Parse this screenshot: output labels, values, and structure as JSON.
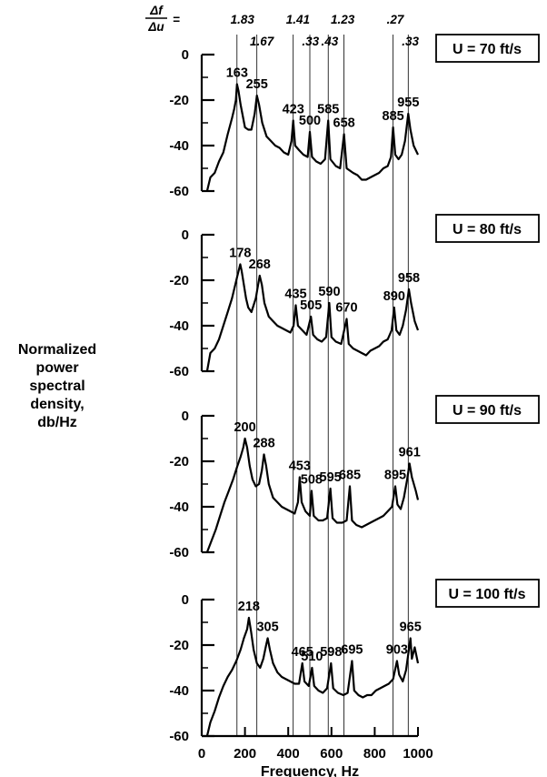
{
  "chart_data": {
    "type": "line",
    "xlabel": "Frequency, Hz",
    "ylabel_lines": [
      "Normalized",
      "power",
      "spectral",
      "density,",
      "db/Hz"
    ],
    "xlim": [
      0,
      1000
    ],
    "ylim": [
      -60,
      0
    ],
    "x_ticks": [
      0,
      200,
      400,
      600,
      800,
      1000
    ],
    "y_ticks": [
      0,
      -20,
      -40,
      -60
    ],
    "ratio_header": {
      "numerator": "Δf",
      "denominator": "Δu",
      "equals": "="
    },
    "ratio_labels": [
      {
        "text": "1.83",
        "x": 188,
        "row": 1
      },
      {
        "text": "1.67",
        "x": 278,
        "row": 2
      },
      {
        "text": "1.41",
        "x": 445,
        "row": 1
      },
      {
        "text": ".33",
        "x": 503,
        "row": 2
      },
      {
        "text": ".43",
        "x": 592,
        "row": 2
      },
      {
        "text": "1.23",
        "x": 652,
        "row": 1
      },
      {
        "text": ".27",
        "x": 895,
        "row": 1
      },
      {
        "text": ".33",
        "x": 965,
        "row": 2
      }
    ],
    "panels": [
      {
        "velocity_label": "U = 70 ft/s",
        "peaks": [
          {
            "label": "163",
            "x": 163,
            "y": -13
          },
          {
            "label": "255",
            "x": 255,
            "y": -18
          },
          {
            "label": "423",
            "x": 423,
            "y": -29
          },
          {
            "label": "500",
            "x": 500,
            "y": -34
          },
          {
            "label": "585",
            "x": 585,
            "y": -29
          },
          {
            "label": "658",
            "x": 658,
            "y": -35
          },
          {
            "label": "885",
            "x": 885,
            "y": -32
          },
          {
            "label": "955",
            "x": 955,
            "y": -26
          }
        ],
        "points": [
          [
            25,
            -60
          ],
          [
            40,
            -54
          ],
          [
            60,
            -52
          ],
          [
            80,
            -47
          ],
          [
            100,
            -43
          ],
          [
            120,
            -35
          ],
          [
            140,
            -28
          ],
          [
            150,
            -24
          ],
          [
            158,
            -20
          ],
          [
            163,
            -13
          ],
          [
            170,
            -16
          ],
          [
            180,
            -22
          ],
          [
            190,
            -27
          ],
          [
            200,
            -32
          ],
          [
            215,
            -33
          ],
          [
            230,
            -33
          ],
          [
            245,
            -26
          ],
          [
            255,
            -18
          ],
          [
            265,
            -22
          ],
          [
            280,
            -30
          ],
          [
            300,
            -36
          ],
          [
            320,
            -38
          ],
          [
            340,
            -40
          ],
          [
            360,
            -41
          ],
          [
            380,
            -43
          ],
          [
            400,
            -44
          ],
          [
            415,
            -38
          ],
          [
            423,
            -29
          ],
          [
            432,
            -40
          ],
          [
            450,
            -42
          ],
          [
            470,
            -44
          ],
          [
            490,
            -45
          ],
          [
            500,
            -34
          ],
          [
            510,
            -45
          ],
          [
            530,
            -47
          ],
          [
            550,
            -48
          ],
          [
            570,
            -46
          ],
          [
            585,
            -29
          ],
          [
            595,
            -46
          ],
          [
            620,
            -49
          ],
          [
            640,
            -50
          ],
          [
            658,
            -35
          ],
          [
            670,
            -50
          ],
          [
            700,
            -52
          ],
          [
            720,
            -53
          ],
          [
            740,
            -55
          ],
          [
            760,
            -55
          ],
          [
            780,
            -54
          ],
          [
            800,
            -53
          ],
          [
            820,
            -52
          ],
          [
            840,
            -50
          ],
          [
            860,
            -49
          ],
          [
            875,
            -45
          ],
          [
            885,
            -32
          ],
          [
            895,
            -44
          ],
          [
            910,
            -46
          ],
          [
            925,
            -44
          ],
          [
            940,
            -38
          ],
          [
            955,
            -26
          ],
          [
            965,
            -33
          ],
          [
            980,
            -40
          ],
          [
            1000,
            -44
          ]
        ]
      },
      {
        "velocity_label": "U = 80 ft/s",
        "peaks": [
          {
            "label": "178",
            "x": 178,
            "y": -13
          },
          {
            "label": "268",
            "x": 268,
            "y": -18
          },
          {
            "label": "435",
            "x": 435,
            "y": -31
          },
          {
            "label": "505",
            "x": 505,
            "y": -36
          },
          {
            "label": "590",
            "x": 590,
            "y": -30
          },
          {
            "label": "670",
            "x": 670,
            "y": -37
          },
          {
            "label": "890",
            "x": 890,
            "y": -32
          },
          {
            "label": "958",
            "x": 958,
            "y": -24
          }
        ],
        "points": [
          [
            25,
            -60
          ],
          [
            40,
            -52
          ],
          [
            60,
            -50
          ],
          [
            80,
            -46
          ],
          [
            100,
            -40
          ],
          [
            120,
            -34
          ],
          [
            140,
            -28
          ],
          [
            155,
            -22
          ],
          [
            165,
            -18
          ],
          [
            178,
            -13
          ],
          [
            185,
            -16
          ],
          [
            195,
            -22
          ],
          [
            205,
            -28
          ],
          [
            215,
            -32
          ],
          [
            230,
            -34
          ],
          [
            250,
            -28
          ],
          [
            268,
            -18
          ],
          [
            278,
            -22
          ],
          [
            290,
            -30
          ],
          [
            310,
            -36
          ],
          [
            330,
            -38
          ],
          [
            350,
            -40
          ],
          [
            370,
            -41
          ],
          [
            390,
            -42
          ],
          [
            410,
            -43
          ],
          [
            425,
            -40
          ],
          [
            435,
            -31
          ],
          [
            445,
            -40
          ],
          [
            465,
            -42
          ],
          [
            485,
            -44
          ],
          [
            505,
            -36
          ],
          [
            515,
            -44
          ],
          [
            535,
            -46
          ],
          [
            555,
            -47
          ],
          [
            575,
            -45
          ],
          [
            590,
            -30
          ],
          [
            600,
            -45
          ],
          [
            620,
            -47
          ],
          [
            645,
            -48
          ],
          [
            670,
            -37
          ],
          [
            680,
            -48
          ],
          [
            700,
            -50
          ],
          [
            720,
            -51
          ],
          [
            740,
            -52
          ],
          [
            760,
            -53
          ],
          [
            780,
            -51
          ],
          [
            800,
            -50
          ],
          [
            820,
            -49
          ],
          [
            840,
            -47
          ],
          [
            860,
            -46
          ],
          [
            878,
            -42
          ],
          [
            890,
            -32
          ],
          [
            900,
            -42
          ],
          [
            915,
            -44
          ],
          [
            930,
            -40
          ],
          [
            945,
            -33
          ],
          [
            958,
            -24
          ],
          [
            968,
            -30
          ],
          [
            985,
            -38
          ],
          [
            1000,
            -42
          ]
        ]
      },
      {
        "velocity_label": "U = 90 ft/s",
        "peaks": [
          {
            "label": "200",
            "x": 200,
            "y": -10
          },
          {
            "label": "288",
            "x": 288,
            "y": -17
          },
          {
            "label": "453",
            "x": 453,
            "y": -27
          },
          {
            "label": "508",
            "x": 508,
            "y": -33
          },
          {
            "label": "595",
            "x": 595,
            "y": -32
          },
          {
            "label": "685",
            "x": 685,
            "y": -31
          },
          {
            "label": "895",
            "x": 895,
            "y": -31
          },
          {
            "label": "961",
            "x": 961,
            "y": -21
          }
        ],
        "points": [
          [
            25,
            -60
          ],
          [
            45,
            -55
          ],
          [
            65,
            -50
          ],
          [
            85,
            -44
          ],
          [
            105,
            -38
          ],
          [
            125,
            -33
          ],
          [
            145,
            -28
          ],
          [
            165,
            -22
          ],
          [
            180,
            -18
          ],
          [
            192,
            -14
          ],
          [
            200,
            -10
          ],
          [
            210,
            -14
          ],
          [
            222,
            -22
          ],
          [
            235,
            -28
          ],
          [
            250,
            -31
          ],
          [
            265,
            -30
          ],
          [
            278,
            -24
          ],
          [
            288,
            -17
          ],
          [
            298,
            -22
          ],
          [
            310,
            -30
          ],
          [
            330,
            -36
          ],
          [
            350,
            -38
          ],
          [
            370,
            -40
          ],
          [
            390,
            -41
          ],
          [
            410,
            -42
          ],
          [
            430,
            -43
          ],
          [
            445,
            -38
          ],
          [
            453,
            -27
          ],
          [
            462,
            -38
          ],
          [
            480,
            -42
          ],
          [
            500,
            -44
          ],
          [
            508,
            -33
          ],
          [
            518,
            -44
          ],
          [
            540,
            -46
          ],
          [
            560,
            -46
          ],
          [
            580,
            -45
          ],
          [
            595,
            -32
          ],
          [
            605,
            -45
          ],
          [
            625,
            -47
          ],
          [
            650,
            -47
          ],
          [
            670,
            -46
          ],
          [
            685,
            -31
          ],
          [
            695,
            -46
          ],
          [
            715,
            -48
          ],
          [
            740,
            -49
          ],
          [
            760,
            -48
          ],
          [
            780,
            -47
          ],
          [
            800,
            -46
          ],
          [
            820,
            -45
          ],
          [
            840,
            -44
          ],
          [
            860,
            -42
          ],
          [
            880,
            -40
          ],
          [
            895,
            -31
          ],
          [
            905,
            -39
          ],
          [
            920,
            -41
          ],
          [
            935,
            -36
          ],
          [
            950,
            -28
          ],
          [
            961,
            -21
          ],
          [
            972,
            -27
          ],
          [
            990,
            -33
          ],
          [
            1000,
            -37
          ]
        ]
      },
      {
        "velocity_label": "U = 100 ft/s",
        "peaks": [
          {
            "label": "218",
            "x": 218,
            "y": -8
          },
          {
            "label": "305",
            "x": 305,
            "y": -17
          },
          {
            "label": "465",
            "x": 465,
            "y": -28
          },
          {
            "label": "510",
            "x": 510,
            "y": -30
          },
          {
            "label": "598",
            "x": 598,
            "y": -28
          },
          {
            "label": "695",
            "x": 695,
            "y": -27
          },
          {
            "label": "903",
            "x": 903,
            "y": -27
          },
          {
            "label": "965",
            "x": 965,
            "y": -17
          }
        ],
        "points": [
          [
            25,
            -60
          ],
          [
            40,
            -54
          ],
          [
            60,
            -49
          ],
          [
            80,
            -43
          ],
          [
            100,
            -38
          ],
          [
            120,
            -34
          ],
          [
            140,
            -31
          ],
          [
            160,
            -27
          ],
          [
            180,
            -22
          ],
          [
            195,
            -17
          ],
          [
            210,
            -13
          ],
          [
            218,
            -8
          ],
          [
            228,
            -14
          ],
          [
            240,
            -22
          ],
          [
            255,
            -28
          ],
          [
            270,
            -30
          ],
          [
            285,
            -26
          ],
          [
            298,
            -20
          ],
          [
            305,
            -17
          ],
          [
            315,
            -22
          ],
          [
            330,
            -28
          ],
          [
            350,
            -32
          ],
          [
            370,
            -34
          ],
          [
            390,
            -35
          ],
          [
            410,
            -36
          ],
          [
            430,
            -37
          ],
          [
            450,
            -37
          ],
          [
            465,
            -28
          ],
          [
            475,
            -36
          ],
          [
            495,
            -38
          ],
          [
            510,
            -30
          ],
          [
            520,
            -38
          ],
          [
            540,
            -40
          ],
          [
            560,
            -41
          ],
          [
            580,
            -39
          ],
          [
            598,
            -28
          ],
          [
            608,
            -39
          ],
          [
            630,
            -41
          ],
          [
            655,
            -42
          ],
          [
            675,
            -41
          ],
          [
            695,
            -27
          ],
          [
            705,
            -40
          ],
          [
            725,
            -42
          ],
          [
            745,
            -43
          ],
          [
            765,
            -42
          ],
          [
            785,
            -42
          ],
          [
            805,
            -40
          ],
          [
            825,
            -39
          ],
          [
            845,
            -38
          ],
          [
            865,
            -37
          ],
          [
            885,
            -35
          ],
          [
            903,
            -27
          ],
          [
            913,
            -33
          ],
          [
            930,
            -36
          ],
          [
            945,
            -31
          ],
          [
            955,
            -24
          ],
          [
            965,
            -17
          ],
          [
            972,
            -26
          ],
          [
            985,
            -21
          ],
          [
            1000,
            -28
          ]
        ]
      }
    ],
    "vertical_guides": [
      163,
      255,
      423,
      500,
      585,
      658,
      885,
      955
    ]
  }
}
